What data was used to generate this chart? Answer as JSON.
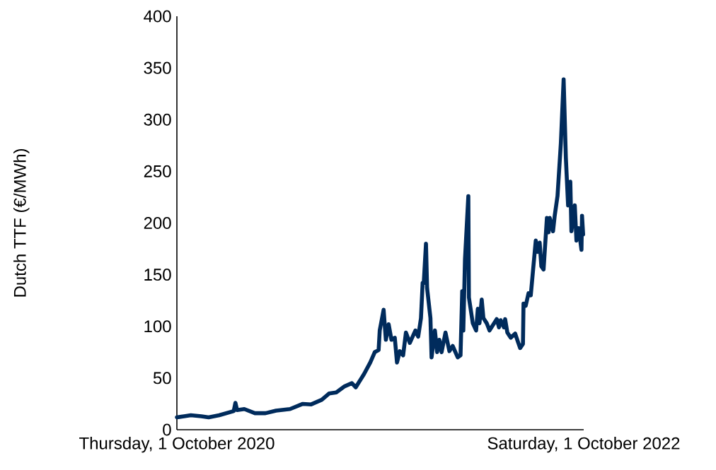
{
  "chart_data": {
    "type": "line",
    "ylabel": "Dutch TTF (€/MWh)",
    "xlim": [
      "2020-10-01",
      "2022-10-01"
    ],
    "xticks": [
      {
        "value": "2020-10-01",
        "label": "Thursday, 1 October 2020"
      },
      {
        "value": "2022-10-01",
        "label": "Saturday, 1 October 2022"
      }
    ],
    "ylim": [
      0,
      400
    ],
    "yticks": [
      0,
      50,
      100,
      150,
      200,
      250,
      300,
      350,
      400
    ],
    "grid": false,
    "marker": "none",
    "line_style": "solid",
    "series": [
      {
        "color": "#002b5c",
        "x": [
          "2020-10-01",
          "2020-10-14",
          "2020-10-26",
          "2020-11-14",
          "2020-11-27",
          "2020-12-16",
          "2021-01-11",
          "2021-01-14",
          "2021-01-17",
          "2021-01-30",
          "2021-02-18",
          "2021-03-09",
          "2021-03-28",
          "2021-04-22",
          "2021-05-15",
          "2021-05-30",
          "2021-06-18",
          "2021-07-01",
          "2021-07-14",
          "2021-07-29",
          "2021-08-11",
          "2021-08-18",
          "2021-09-02",
          "2021-09-13",
          "2021-09-21",
          "2021-09-28",
          "2021-09-30",
          "2021-10-07",
          "2021-10-11",
          "2021-10-16",
          "2021-10-21",
          "2021-10-27",
          "2021-10-31",
          "2021-11-05",
          "2021-11-11",
          "2021-11-16",
          "2021-11-23",
          "2021-11-28",
          "2021-12-03",
          "2021-12-08",
          "2021-12-13",
          "2021-12-16",
          "2021-12-18",
          "2021-12-22",
          "2021-12-24",
          "2021-12-30",
          "2022-01-01",
          "2022-01-07",
          "2022-01-11",
          "2022-01-15",
          "2022-01-19",
          "2022-01-26",
          "2022-02-02",
          "2022-02-08",
          "2022-02-17",
          "2022-02-22",
          "2022-02-25",
          "2022-02-27",
          "2022-03-02",
          "2022-03-08",
          "2022-03-09",
          "2022-03-16",
          "2022-03-22",
          "2022-03-25",
          "2022-03-28",
          "2022-04-01",
          "2022-04-04",
          "2022-04-10",
          "2022-04-15",
          "2022-04-28",
          "2022-05-02",
          "2022-05-05",
          "2022-05-11",
          "2022-05-13",
          "2022-05-17",
          "2022-05-23",
          "2022-05-31",
          "2022-06-05",
          "2022-06-09",
          "2022-06-14",
          "2022-06-15",
          "2022-06-19",
          "2022-06-24",
          "2022-06-28",
          "2022-07-07",
          "2022-07-10",
          "2022-07-14",
          "2022-07-17",
          "2022-07-21",
          "2022-07-27",
          "2022-07-30",
          "2022-08-01",
          "2022-08-07",
          "2022-08-10",
          "2022-08-15",
          "2022-08-21",
          "2022-08-26",
          "2022-08-30",
          "2022-09-03",
          "2022-09-07",
          "2022-09-09",
          "2022-09-15",
          "2022-09-18",
          "2022-09-22",
          "2022-09-27",
          "2022-09-28",
          "2022-09-30"
        ],
        "values": [
          12,
          13,
          14,
          13,
          12,
          14,
          18,
          26,
          19,
          20,
          16,
          16,
          18.5,
          20,
          25,
          24.5,
          29,
          35,
          36,
          42,
          45,
          41,
          54,
          65,
          75,
          77,
          96,
          116,
          87,
          102,
          87,
          89,
          65,
          76,
          72,
          94,
          84,
          90,
          96,
          90,
          108,
          142,
          142,
          180,
          137,
          108,
          70,
          96,
          75,
          87,
          75,
          94,
          76,
          81,
          70,
          72,
          134,
          96,
          165,
          226,
          128,
          103,
          96,
          117,
          103,
          126,
          108,
          103,
          96,
          107,
          99,
          106,
          99,
          107,
          94,
          89,
          93,
          85,
          79,
          83,
          122,
          120,
          132,
          130,
          183,
          172,
          181,
          158,
          155,
          205,
          191,
          205,
          192,
          207,
          226,
          277,
          339,
          263,
          217,
          240,
          192,
          217,
          183,
          195,
          174,
          207,
          189
        ]
      }
    ]
  }
}
